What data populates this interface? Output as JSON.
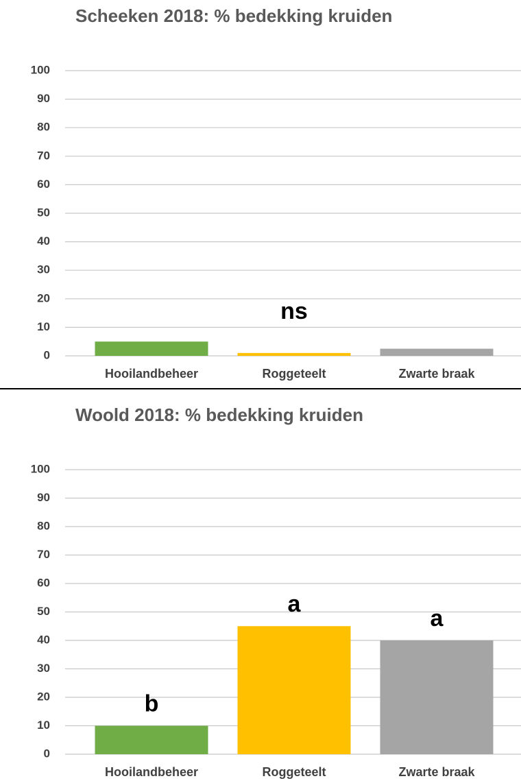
{
  "chart_data": [
    {
      "type": "bar",
      "title": "Scheeken 2018: % bedekking kruiden",
      "categories": [
        "Hooilandbeheer",
        "Roggeteelt",
        "Zwarte braak"
      ],
      "values": [
        5,
        1,
        2.5
      ],
      "colors": [
        "#70ad47",
        "#ffc000",
        "#a5a5a5"
      ],
      "annotation": "ns",
      "ylim": [
        0,
        100
      ],
      "yticks": [
        0,
        10,
        20,
        30,
        40,
        50,
        60,
        70,
        80,
        90,
        100
      ],
      "grid": true
    },
    {
      "type": "bar",
      "title": "Woold 2018: % bedekking kruiden",
      "categories": [
        "Hooilandbeheer",
        "Roggeteelt",
        "Zwarte braak"
      ],
      "values": [
        10,
        45,
        40
      ],
      "colors": [
        "#70ad47",
        "#ffc000",
        "#a5a5a5"
      ],
      "annotations": [
        "b",
        "a",
        "a"
      ],
      "ylim": [
        0,
        100
      ],
      "yticks": [
        0,
        10,
        20,
        30,
        40,
        50,
        60,
        70,
        80,
        90,
        100
      ],
      "grid": true
    }
  ]
}
